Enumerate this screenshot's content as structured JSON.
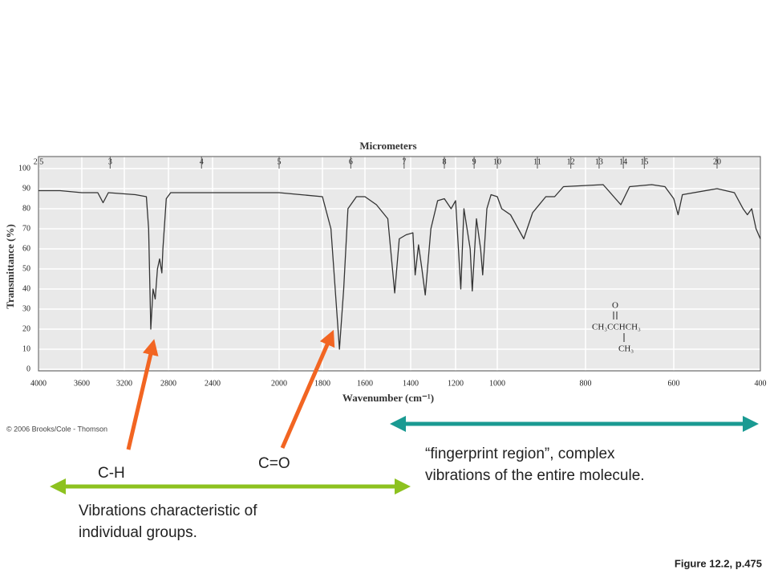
{
  "chart_data": {
    "type": "line",
    "x_label": "Wavenumber (cm⁻¹)",
    "y_label": "Transmittance (%)",
    "x2_label": "Micrometers",
    "xlim": [
      4000,
      400
    ],
    "ylim": [
      0,
      100
    ],
    "xticks": [
      4000,
      3600,
      3200,
      2800,
      2400,
      2000,
      1800,
      1600,
      1400,
      1200,
      1000,
      800,
      600,
      400
    ],
    "yticks": [
      0,
      10,
      20,
      30,
      40,
      50,
      60,
      70,
      80,
      90,
      100
    ],
    "x2ticks": [
      2.5,
      3,
      4,
      5,
      6,
      7,
      8,
      9,
      10,
      11,
      12,
      13,
      14,
      15,
      20
    ],
    "grid": true,
    "color": "#333333",
    "x": [
      4000,
      3800,
      3600,
      3450,
      3400,
      3350,
      3100,
      3000,
      2980,
      2960,
      2940,
      2920,
      2900,
      2880,
      2860,
      2850,
      2820,
      2780,
      2600,
      2400,
      2000,
      1900,
      1800,
      1760,
      1720,
      1700,
      1680,
      1640,
      1600,
      1550,
      1500,
      1470,
      1450,
      1420,
      1390,
      1380,
      1365,
      1350,
      1335,
      1310,
      1280,
      1250,
      1220,
      1200,
      1175,
      1160,
      1130,
      1120,
      1100,
      1080,
      1070,
      1050,
      1030,
      1000,
      990,
      970,
      940,
      920,
      890,
      870,
      850,
      760,
      740,
      720,
      700,
      650,
      620,
      600,
      590,
      580,
      500,
      460,
      440,
      430,
      420,
      410,
      400
    ],
    "values": [
      89,
      89,
      88,
      88,
      83,
      88,
      87,
      86,
      70,
      20,
      40,
      35,
      50,
      55,
      48,
      60,
      85,
      88,
      88,
      88,
      88,
      87,
      86,
      70,
      10,
      40,
      80,
      86,
      86,
      82,
      75,
      38,
      65,
      67,
      68,
      47,
      62,
      50,
      37,
      70,
      84,
      85,
      80,
      84,
      40,
      80,
      60,
      39,
      75,
      60,
      47,
      80,
      87,
      86,
      80,
      77,
      65,
      78,
      86,
      86,
      91,
      92,
      87,
      82,
      91,
      92,
      91,
      85,
      77,
      87,
      90,
      88,
      80,
      77,
      80,
      70,
      65
    ],
    "structure": {
      "oxygen": "O",
      "main": "CH₃CCHCH₃",
      "branch": "CH₃"
    },
    "copyright": "© 2006 Brooks/Cole - Thomson",
    "annotations": {
      "ch": "C-H",
      "co": "C=O",
      "fingerprint": [
        "“fingerprint region”, complex",
        "vibrations of the entire molecule."
      ],
      "groups": [
        "Vibrations characteristic of",
        "individual groups."
      ]
    },
    "figure_ref": "Figure 12.2, p.475"
  }
}
